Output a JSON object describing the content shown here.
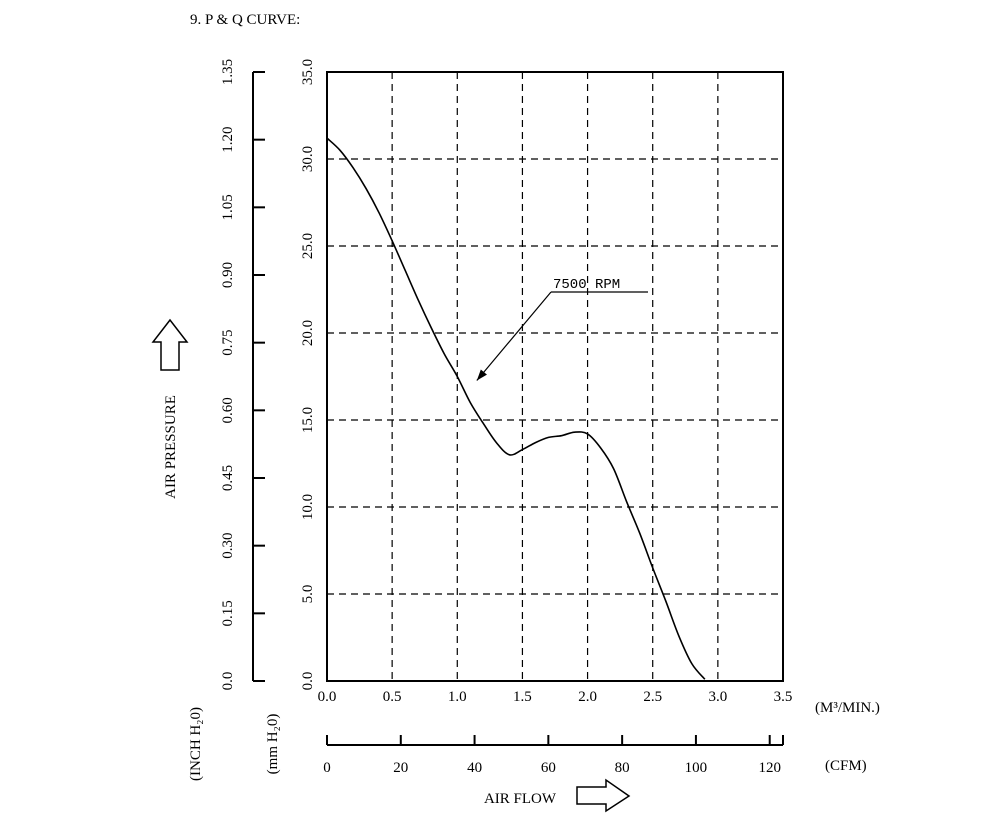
{
  "chart_data": {
    "type": "line",
    "title": "9. P & Q CURVE:",
    "xlabel": "AIR FLOW",
    "ylabel": "AIR PRESSURE",
    "x_unit_primary": "(M³/MIN.)",
    "x_unit_secondary": "(CFM)",
    "y_unit_primary": "(mm H₂0)",
    "y_unit_secondary": "(INCH H₂0)",
    "xlim": [
      0,
      3.5
    ],
    "ylim": [
      0,
      35
    ],
    "x_ticks": [
      "0.0",
      "0.5",
      "1.0",
      "1.5",
      "2.0",
      "2.5",
      "3.0",
      "3.5"
    ],
    "y_ticks": [
      "0.0",
      "5.0",
      "10.0",
      "15.0",
      "20.0",
      "25.0",
      "30.0",
      "35.0"
    ],
    "cfm_ticks": [
      0,
      20,
      40,
      60,
      80,
      100,
      120
    ],
    "cfm_per_m3min": 35.315,
    "inch_ticks": [
      "0.0",
      "0.15",
      "0.30",
      "0.45",
      "0.60",
      "0.75",
      "0.90",
      "1.05",
      "1.20",
      "1.35"
    ],
    "inch_max": 1.35,
    "grid": true,
    "series": [
      {
        "name": "7500 RPM",
        "x": [
          0.0,
          0.1,
          0.2,
          0.3,
          0.4,
          0.5,
          0.6,
          0.7,
          0.8,
          0.9,
          1.0,
          1.1,
          1.2,
          1.3,
          1.4,
          1.5,
          1.6,
          1.7,
          1.8,
          1.9,
          2.0,
          2.1,
          2.2,
          2.3,
          2.4,
          2.5,
          2.6,
          2.7,
          2.8,
          2.9
        ],
        "y": [
          31.2,
          30.5,
          29.5,
          28.3,
          26.9,
          25.3,
          23.6,
          21.9,
          20.3,
          18.8,
          17.5,
          16.0,
          14.8,
          13.7,
          13.0,
          13.3,
          13.7,
          14.0,
          14.1,
          14.3,
          14.2,
          13.4,
          12.2,
          10.3,
          8.5,
          6.5,
          4.6,
          2.6,
          1.0,
          0.1
        ]
      }
    ],
    "annotation": "7500 RPM"
  }
}
